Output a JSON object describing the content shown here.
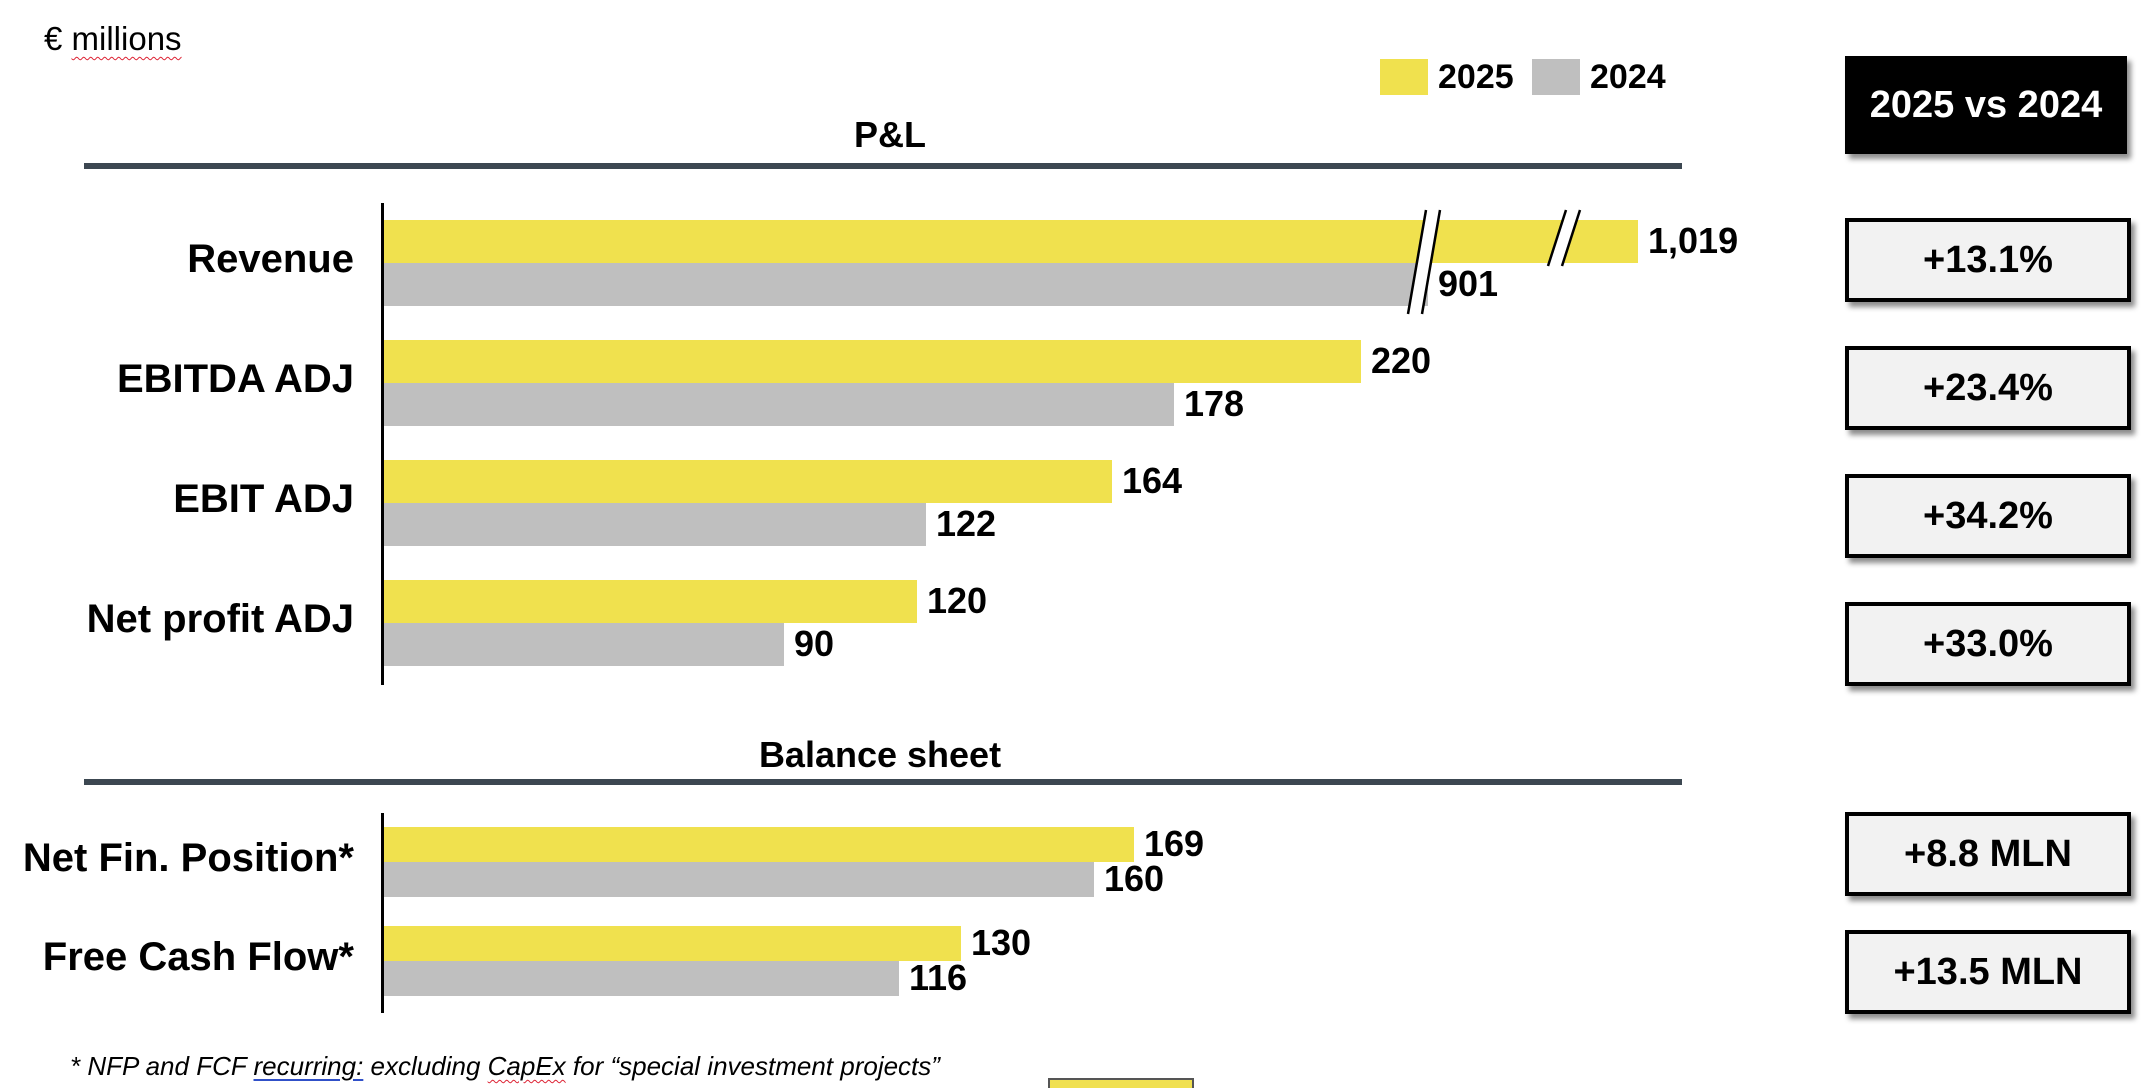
{
  "unit": {
    "symbol": "€",
    "word": "millions"
  },
  "legend": [
    {
      "label": "2025",
      "color": "#F0E14E"
    },
    {
      "label": "2024",
      "color": "#BFBFBF"
    }
  ],
  "sections": {
    "pl": "P&L",
    "balance": "Balance sheet"
  },
  "comparison_header": "2025 vs 2024",
  "chart_data": {
    "type": "bar",
    "orientation": "horizontal",
    "unit": "€ millions",
    "groups": [
      {
        "title": "P&L",
        "categories": [
          "Revenue",
          "EBITDA ADJ",
          "EBIT ADJ",
          "Net profit ADJ"
        ],
        "series": [
          {
            "name": "2025",
            "values": [
              1019,
              220,
              164,
              120
            ],
            "labels": [
              "1,019",
              "220",
              "164",
              "120"
            ]
          },
          {
            "name": "2024",
            "values": [
              901,
              178,
              122,
              90
            ],
            "labels": [
              "901",
              "178",
              "122",
              "90"
            ]
          }
        ],
        "axis_break": "Revenue",
        "changes": [
          "+13.1%",
          "+23.4%",
          "+34.2%",
          "+33.0%"
        ]
      },
      {
        "title": "Balance sheet",
        "categories": [
          "Net Fin. Position*",
          "Free Cash Flow*"
        ],
        "series": [
          {
            "name": "2025",
            "values": [
              169,
              130
            ],
            "labels": [
              "169",
              "130"
            ]
          },
          {
            "name": "2024",
            "values": [
              160,
              116
            ],
            "labels": [
              "160",
              "116"
            ]
          }
        ],
        "changes": [
          "+8.8 MLN",
          "+13.5 MLN"
        ]
      }
    ],
    "legend_position": "top-right",
    "grid": false
  },
  "footnote": {
    "p1": "* NFP and FCF ",
    "p2": "recurring:",
    "p3": " excluding ",
    "p4": "CapEx",
    "p5": " for “special investment projects”"
  }
}
